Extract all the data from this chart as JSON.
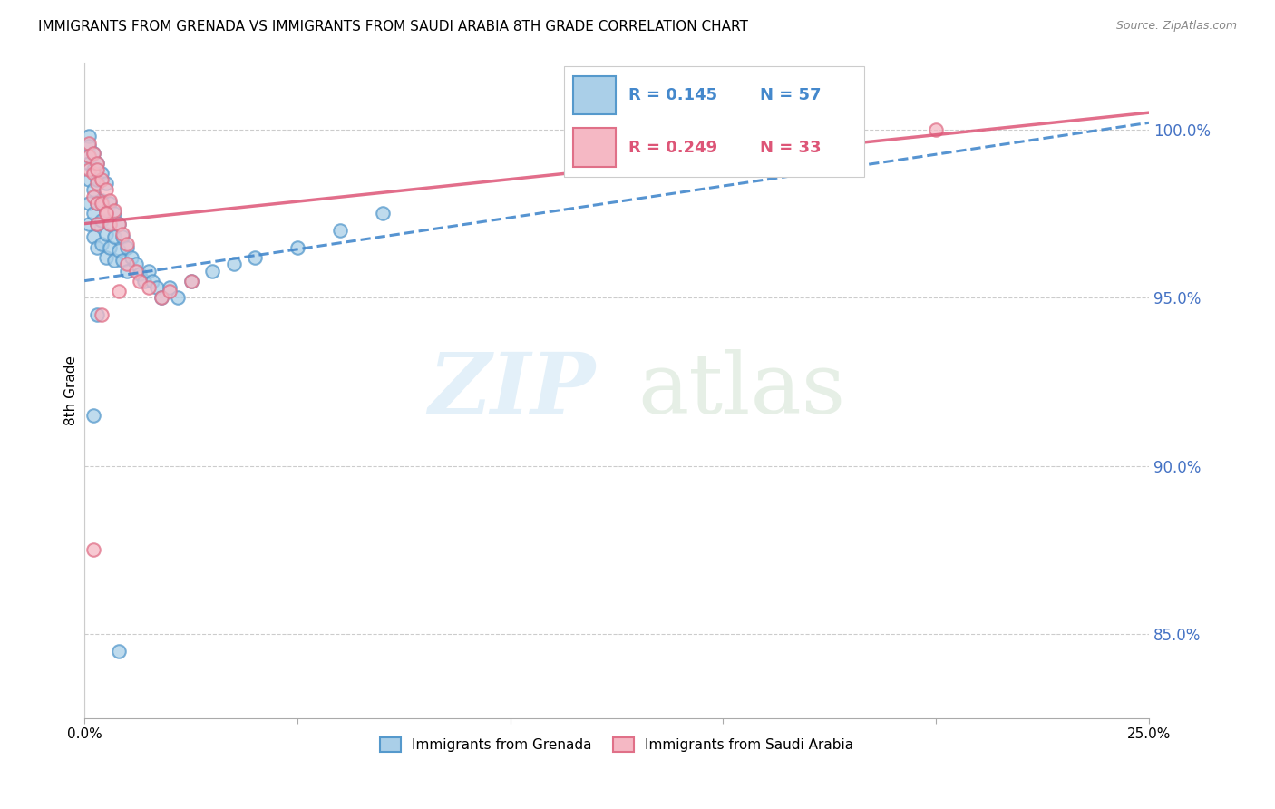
{
  "title": "IMMIGRANTS FROM GRENADA VS IMMIGRANTS FROM SAUDI ARABIA 8TH GRADE CORRELATION CHART",
  "source": "Source: ZipAtlas.com",
  "ylabel": "8th Grade",
  "legend_entry1": {
    "R": "0.145",
    "N": "57",
    "label": "Immigrants from Grenada"
  },
  "legend_entry2": {
    "R": "0.249",
    "N": "33",
    "label": "Immigrants from Saudi Arabia"
  },
  "blue_face": "#aacfe8",
  "blue_edge": "#5599cc",
  "pink_face": "#f5b8c4",
  "pink_edge": "#e07088",
  "blue_line": "#4488cc",
  "pink_line": "#dd5577",
  "ytick_vals": [
    85.0,
    90.0,
    95.0,
    100.0
  ],
  "xlim": [
    0.0,
    0.25
  ],
  "ylim": [
    82.5,
    102.0
  ],
  "grenada_x": [
    0.001,
    0.001,
    0.001,
    0.001,
    0.001,
    0.001,
    0.001,
    0.002,
    0.002,
    0.002,
    0.002,
    0.002,
    0.003,
    0.003,
    0.003,
    0.003,
    0.003,
    0.004,
    0.004,
    0.004,
    0.004,
    0.005,
    0.005,
    0.005,
    0.005,
    0.006,
    0.006,
    0.006,
    0.007,
    0.007,
    0.007,
    0.008,
    0.008,
    0.009,
    0.009,
    0.01,
    0.01,
    0.011,
    0.012,
    0.013,
    0.014,
    0.015,
    0.016,
    0.017,
    0.018,
    0.02,
    0.022,
    0.025,
    0.03,
    0.035,
    0.04,
    0.05,
    0.06,
    0.07,
    0.002,
    0.003,
    0.008
  ],
  "grenada_y": [
    99.8,
    99.5,
    99.2,
    99.0,
    98.5,
    97.8,
    97.2,
    99.3,
    98.8,
    98.2,
    97.5,
    96.8,
    99.0,
    98.5,
    97.8,
    97.2,
    96.5,
    98.7,
    97.9,
    97.3,
    96.6,
    98.4,
    97.6,
    96.9,
    96.2,
    97.8,
    97.2,
    96.5,
    97.5,
    96.8,
    96.1,
    97.2,
    96.4,
    96.8,
    96.1,
    96.5,
    95.8,
    96.2,
    96.0,
    95.7,
    95.5,
    95.8,
    95.5,
    95.3,
    95.0,
    95.3,
    95.0,
    95.5,
    95.8,
    96.0,
    96.2,
    96.5,
    97.0,
    97.5,
    91.5,
    94.5,
    84.5
  ],
  "saudi_x": [
    0.001,
    0.001,
    0.001,
    0.002,
    0.002,
    0.002,
    0.003,
    0.003,
    0.003,
    0.003,
    0.004,
    0.004,
    0.005,
    0.005,
    0.006,
    0.006,
    0.007,
    0.008,
    0.009,
    0.01,
    0.01,
    0.012,
    0.013,
    0.015,
    0.018,
    0.02,
    0.025,
    0.003,
    0.005,
    0.008,
    0.2,
    0.002,
    0.004
  ],
  "saudi_y": [
    99.6,
    99.2,
    98.8,
    99.3,
    98.7,
    98.0,
    99.0,
    98.4,
    97.8,
    97.2,
    98.5,
    97.8,
    98.2,
    97.5,
    97.9,
    97.2,
    97.6,
    97.2,
    96.9,
    96.6,
    96.0,
    95.8,
    95.5,
    95.3,
    95.0,
    95.2,
    95.5,
    98.8,
    97.5,
    95.2,
    100.0,
    87.5,
    94.5
  ],
  "blue_trend_x0": 0.0,
  "blue_trend_y0": 95.5,
  "blue_trend_x1": 0.25,
  "blue_trend_y1": 100.2,
  "pink_trend_x0": 0.0,
  "pink_trend_y0": 97.2,
  "pink_trend_x1": 0.25,
  "pink_trend_y1": 100.5
}
